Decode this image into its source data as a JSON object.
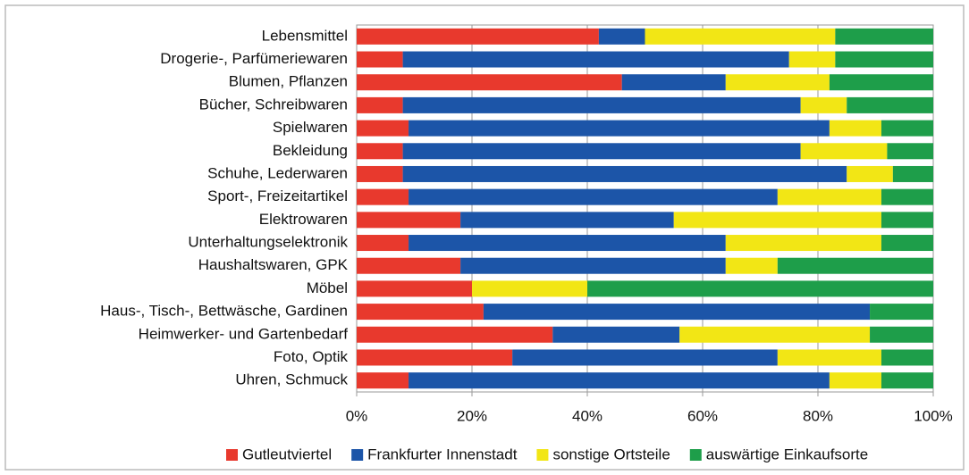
{
  "chart_data": {
    "type": "stacked-bar-horizontal",
    "categories": [
      "Lebensmittel",
      "Drogerie-, Parfümeriewaren",
      "Blumen, Pflanzen",
      "Bücher, Schreibwaren",
      "Spielwaren",
      "Bekleidung",
      "Schuhe, Lederwaren",
      "Sport-, Freizeitartikel",
      "Elektrowaren",
      "Unterhaltungselektronik",
      "Haushaltswaren, GPK",
      "Möbel",
      "Haus-, Tisch-, Bettwäsche, Gardinen",
      "Heimwerker- und Gartenbedarf",
      "Foto, Optik",
      "Uhren, Schmuck"
    ],
    "series": [
      {
        "name": "Gutleutviertel",
        "color": "#e8392d",
        "values": [
          42,
          8,
          46,
          8,
          9,
          8,
          8,
          9,
          18,
          9,
          18,
          20,
          22,
          34,
          27,
          9
        ]
      },
      {
        "name": "Frankfurter Innenstadt",
        "color": "#1c55a8",
        "values": [
          8,
          67,
          18,
          69,
          73,
          69,
          77,
          64,
          37,
          55,
          46,
          0,
          67,
          22,
          46,
          73
        ]
      },
      {
        "name": "sonstige Ortsteile",
        "color": "#f2e615",
        "values": [
          33,
          8,
          18,
          8,
          9,
          15,
          8,
          18,
          36,
          27,
          9,
          20,
          0,
          33,
          18,
          9
        ]
      },
      {
        "name": "auswärtige Einkaufsorte",
        "color": "#1e9e4a",
        "values": [
          17,
          17,
          18,
          15,
          9,
          8,
          7,
          9,
          9,
          9,
          27,
          60,
          11,
          11,
          9,
          9
        ]
      }
    ],
    "xlim": [
      0,
      100
    ],
    "xticks": [
      {
        "value": 0,
        "label": "0%"
      },
      {
        "value": 20,
        "label": "20%"
      },
      {
        "value": 40,
        "label": "40%"
      },
      {
        "value": 60,
        "label": "60%"
      },
      {
        "value": 80,
        "label": "80%"
      },
      {
        "value": 100,
        "label": "100%"
      }
    ],
    "grid": true
  }
}
